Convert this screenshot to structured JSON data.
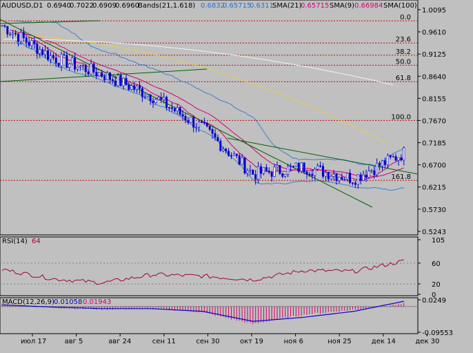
{
  "header": {
    "symbol": "AUDUSD,D1",
    "ohlc": [
      "0.6940",
      "0.7022",
      "0.6909",
      "0.6960"
    ],
    "bands_label": "Bands(21,1.618)",
    "bands_values": [
      "0.6832",
      "0.65715",
      "0.6311"
    ],
    "sma21_label": "SMA(21)",
    "sma21_value": "0.65715",
    "sma9_label": "SMA(9)",
    "sma9_value": "0.66984",
    "sma100_label": "SMA(100)"
  },
  "price_axis": [
    "1.0095",
    "0.9610",
    "0.9125",
    "0.8640",
    "0.8155",
    "0.7670",
    "0.7185",
    "0.6700",
    "0.6215",
    "0.5730",
    "0.5243"
  ],
  "fib_levels": [
    {
      "label": "0.0",
      "price": 0.9852
    },
    {
      "label": "23.6",
      "price": 0.9366
    },
    {
      "label": "38.2",
      "price": 0.9099
    },
    {
      "label": "50.0",
      "price": 0.888
    },
    {
      "label": "61.8",
      "price": 0.852
    },
    {
      "label": "100.0",
      "price": 0.767
    },
    {
      "label": "161.8",
      "price": 0.636
    }
  ],
  "rsi": {
    "label": "RSI(14)",
    "value": "64",
    "axis": [
      "105",
      "60",
      "20",
      "0"
    ]
  },
  "macd": {
    "label": "MACD(12,26,9)",
    "values": [
      "0.01058",
      "0.01943"
    ],
    "axis": [
      "0.0249",
      "-0.09553"
    ]
  },
  "date_axis": [
    "июл 17",
    "авг 5",
    "авг 24",
    "сен 11",
    "сен 30",
    "окт 19",
    "ноя 6",
    "ноя 25",
    "дек 14",
    "дек 30"
  ],
  "colors": {
    "background": "#c0c0c0",
    "candle": "#0000cc",
    "sma9": "#d4006f",
    "sma21": "#d4006f",
    "sma100": "#e8d040",
    "bands": "#3a7fd4",
    "trendline": "#006000",
    "fib": "#c00000",
    "rsi": "#a0003c",
    "macd_line": "#0000cc",
    "macd_hist": "#d4006f"
  },
  "chart_data": {
    "type": "candlestick",
    "x": [
      "июл 17",
      "авг 5",
      "авг 24",
      "сен 11",
      "сен 30",
      "окт 19",
      "ноя 6",
      "ноя 25",
      "дек 14"
    ],
    "close": [
      0.975,
      0.905,
      0.868,
      0.82,
      0.75,
      0.65,
      0.665,
      0.64,
      0.696
    ],
    "ylim": [
      0.5243,
      1.0095
    ],
    "rsi": [
      48,
      30,
      22,
      38,
      35,
      28,
      46,
      44,
      64
    ],
    "rsi_ylim": [
      0,
      105
    ],
    "macd": [
      0.008,
      -0.004,
      -0.01,
      -0.006,
      -0.022,
      -0.065,
      -0.03,
      -0.012,
      0.01058
    ],
    "macd_signal": [
      0.006,
      -0.002,
      -0.008,
      -0.008,
      -0.018,
      -0.055,
      -0.04,
      -0.018,
      0.01943
    ],
    "macd_ylim": [
      -0.09553,
      0.0249
    ]
  }
}
